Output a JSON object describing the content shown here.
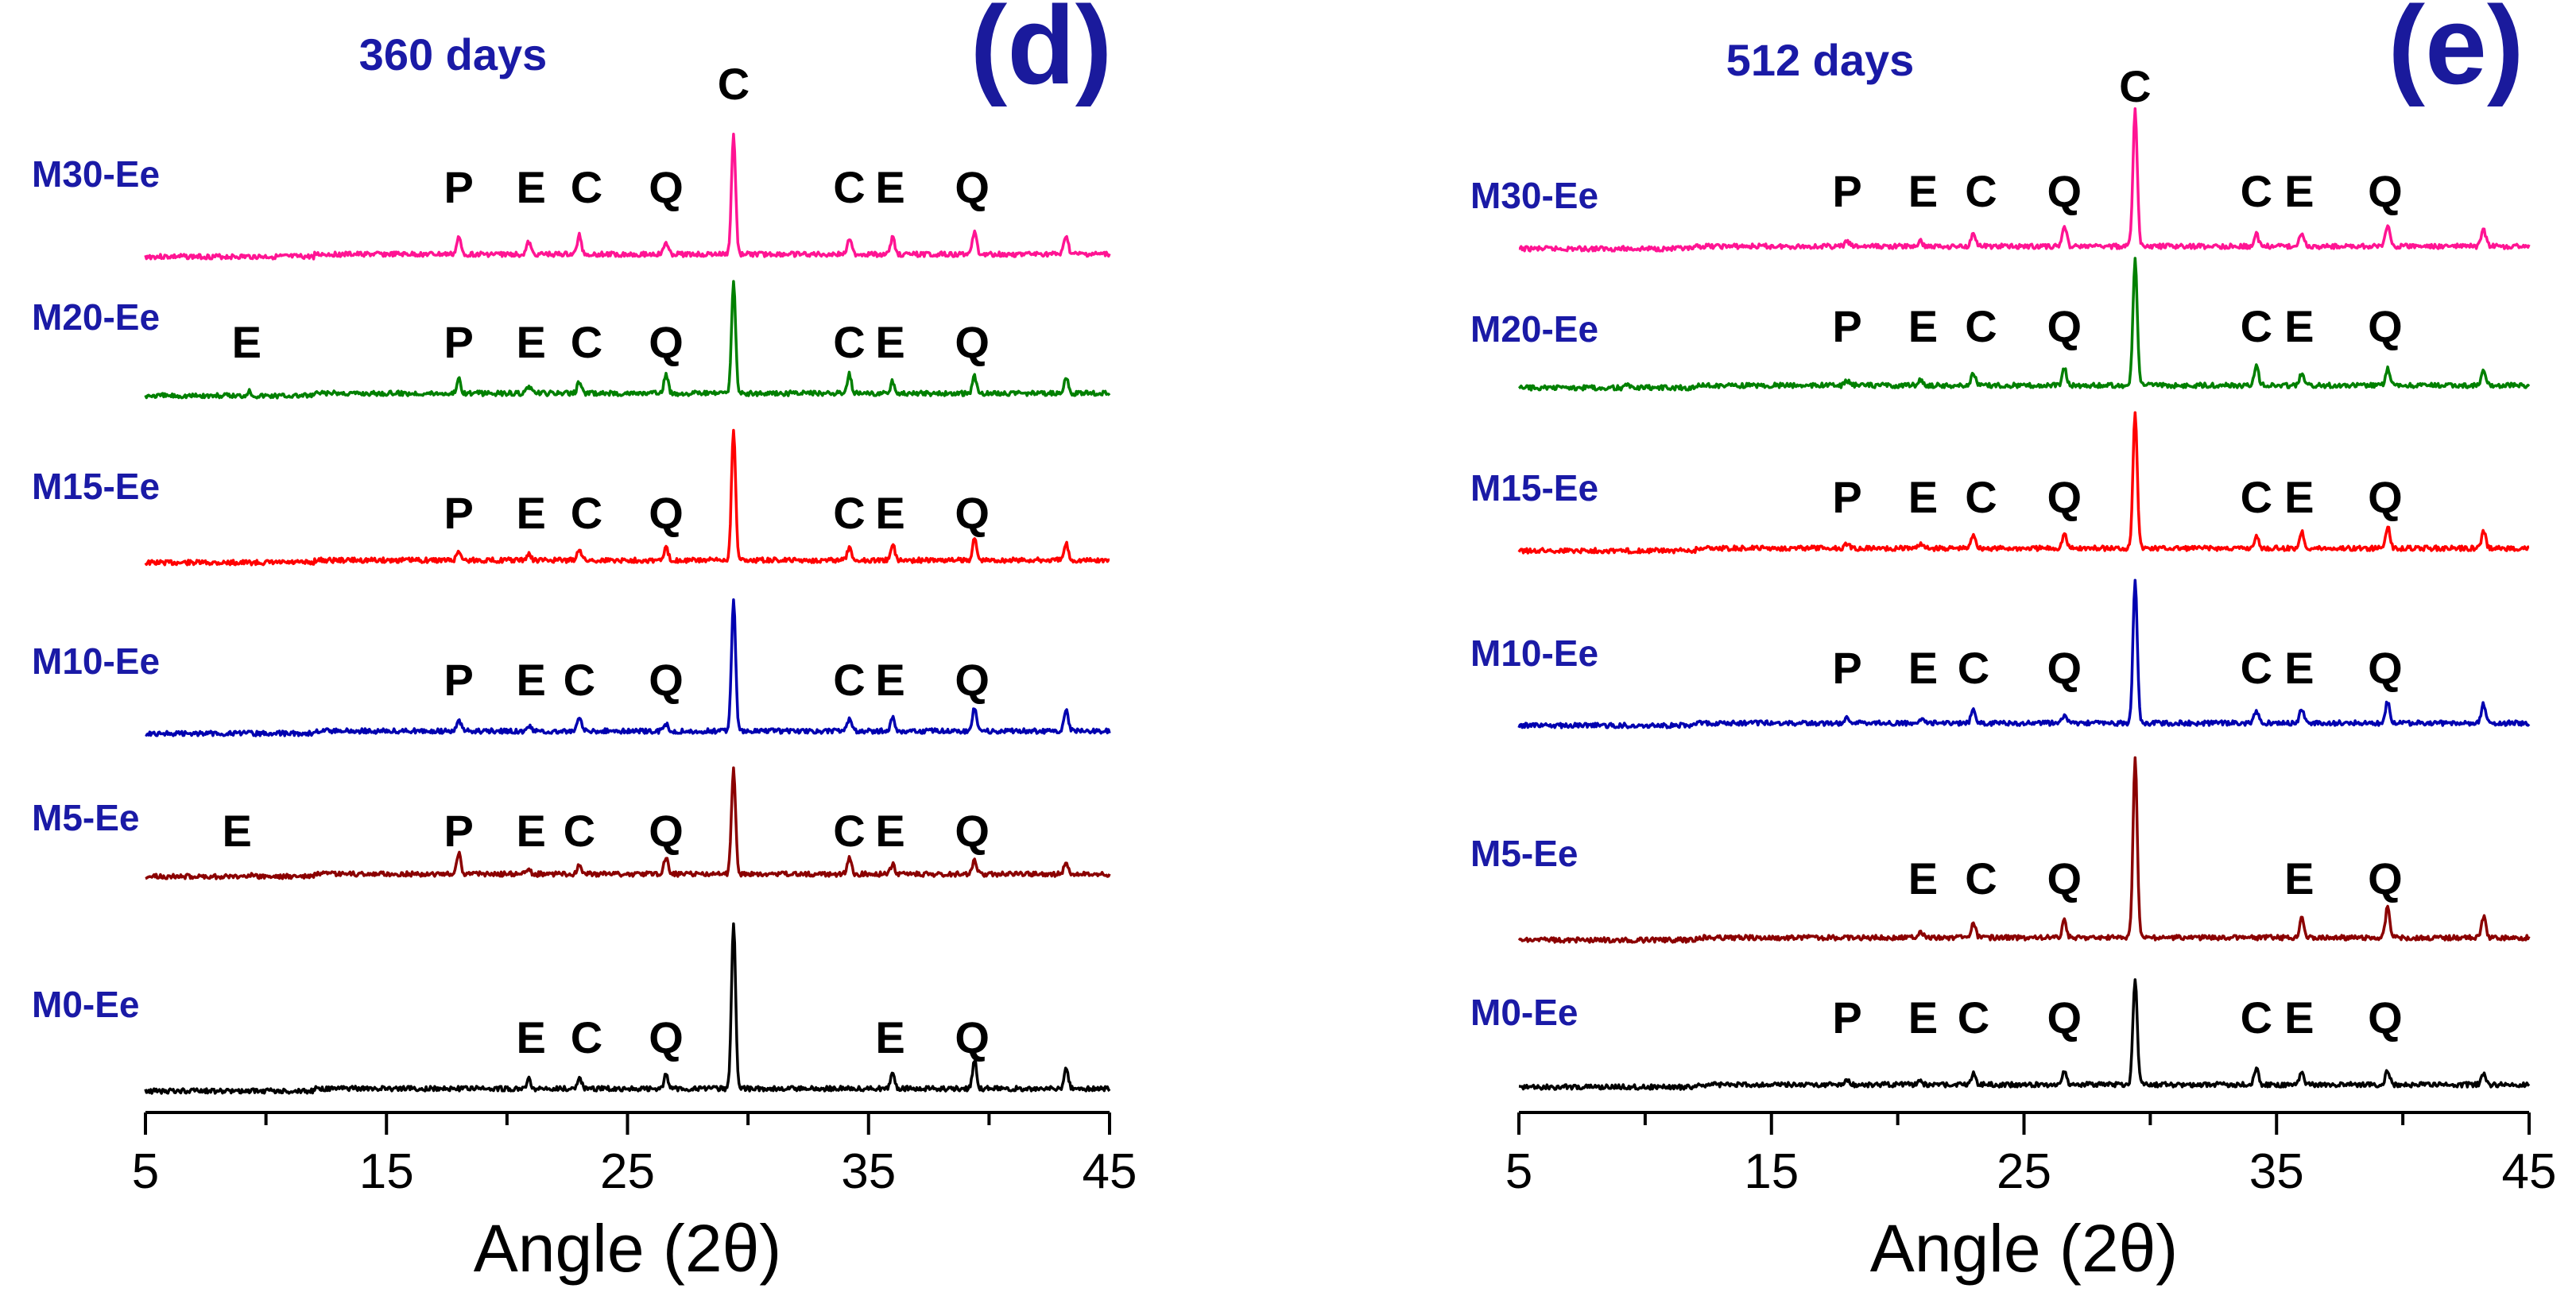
{
  "figure_title": "",
  "colors": {
    "M30-Ee": "#ff1493",
    "M20-Ee": "#008000",
    "M15-Ee": "#ff0000",
    "M10-Ee": "#0000b0",
    "M5-Ee": "#8b0000",
    "M0-Ee": "#000000",
    "label_blue": "#1a1aa6",
    "panel_letter": "#1a1a9c"
  },
  "chart_data": [
    {
      "type": "line",
      "panel_label": "(d)",
      "title": "360 days",
      "xlabel": "Angle (2θ)",
      "ylabel": "",
      "xlim": [
        5,
        45
      ],
      "xticks": [
        5,
        15,
        25,
        35,
        45
      ],
      "tick_labels": [
        "5",
        "15",
        "25",
        "35",
        "45"
      ],
      "grid": false,
      "peak_positions_2theta": [
        29.4,
        23.0,
        26.6,
        18.0,
        20.9,
        34.2,
        36.0,
        39.4,
        43.2,
        9.3
      ],
      "series": [
        {
          "name": "M30-Ee",
          "intensities": [
            1.0,
            0.16,
            0.1,
            0.14,
            0.1,
            0.14,
            0.14,
            0.2,
            0.16,
            0.0
          ],
          "annotations": [
            {
              "text": "P",
              "x": 18.0
            },
            {
              "text": "E",
              "x": 21.0
            },
            {
              "text": "C",
              "x": 23.3
            },
            {
              "text": "Q",
              "x": 26.6
            },
            {
              "text": "C",
              "x": 29.4
            },
            {
              "text": "C",
              "x": 34.2
            },
            {
              "text": "E",
              "x": 35.9
            },
            {
              "text": "Q",
              "x": 39.3
            }
          ]
        },
        {
          "name": "M20-Ee",
          "intensities": [
            0.92,
            0.1,
            0.16,
            0.12,
            0.06,
            0.16,
            0.1,
            0.14,
            0.14,
            0.04
          ],
          "annotations": [
            {
              "text": "E",
              "x": 9.2
            },
            {
              "text": "P",
              "x": 18.0
            },
            {
              "text": "E",
              "x": 21.0
            },
            {
              "text": "C",
              "x": 23.3
            },
            {
              "text": "Q",
              "x": 26.6
            },
            {
              "text": "C",
              "x": 34.2
            },
            {
              "text": "E",
              "x": 35.9
            },
            {
              "text": "Q",
              "x": 39.3
            }
          ]
        },
        {
          "name": "M15-Ee",
          "intensities": [
            1.1,
            0.1,
            0.1,
            0.08,
            0.05,
            0.1,
            0.14,
            0.18,
            0.14,
            0.0
          ],
          "annotations": [
            {
              "text": "P",
              "x": 18.0
            },
            {
              "text": "E",
              "x": 21.0
            },
            {
              "text": "C",
              "x": 23.3
            },
            {
              "text": "Q",
              "x": 26.6
            },
            {
              "text": "C",
              "x": 34.2
            },
            {
              "text": "E",
              "x": 35.9
            },
            {
              "text": "Q",
              "x": 39.3
            }
          ]
        },
        {
          "name": "M10-Ee",
          "intensities": [
            1.1,
            0.12,
            0.06,
            0.1,
            0.04,
            0.1,
            0.12,
            0.2,
            0.18,
            0.0
          ],
          "annotations": [
            {
              "text": "P",
              "x": 18.0
            },
            {
              "text": "E",
              "x": 21.0
            },
            {
              "text": "C",
              "x": 23.0
            },
            {
              "text": "Q",
              "x": 26.6
            },
            {
              "text": "C",
              "x": 34.2
            },
            {
              "text": "E",
              "x": 35.9
            },
            {
              "text": "Q",
              "x": 39.3
            }
          ]
        },
        {
          "name": "M5-Ee",
          "intensities": [
            0.88,
            0.08,
            0.14,
            0.18,
            0.04,
            0.14,
            0.08,
            0.12,
            0.1,
            0.02
          ],
          "annotations": [
            {
              "text": "E",
              "x": 8.8
            },
            {
              "text": "P",
              "x": 18.0
            },
            {
              "text": "E",
              "x": 21.0
            },
            {
              "text": "C",
              "x": 23.0
            },
            {
              "text": "Q",
              "x": 26.6
            },
            {
              "text": "C",
              "x": 34.2
            },
            {
              "text": "E",
              "x": 35.9
            },
            {
              "text": "Q",
              "x": 39.3
            }
          ]
        },
        {
          "name": "M0-Ee",
          "intensities": [
            1.4,
            0.1,
            0.12,
            0.0,
            0.08,
            0.0,
            0.14,
            0.24,
            0.18,
            0.0
          ],
          "annotations": [
            {
              "text": "E",
              "x": 21.0
            },
            {
              "text": "C",
              "x": 23.3
            },
            {
              "text": "Q",
              "x": 26.6
            },
            {
              "text": "E",
              "x": 35.9
            },
            {
              "text": "Q",
              "x": 39.3
            }
          ]
        }
      ]
    },
    {
      "type": "line",
      "panel_label": "(e)",
      "title": "512 days",
      "xlabel": "Angle (2θ)",
      "ylabel": "",
      "xlim": [
        5,
        45
      ],
      "xticks": [
        5,
        15,
        25,
        35,
        45
      ],
      "tick_labels": [
        "5",
        "15",
        "25",
        "35",
        "45"
      ],
      "grid": false,
      "peak_positions_2theta": [
        29.4,
        23.0,
        26.6,
        18.0,
        20.9,
        34.2,
        36.0,
        39.4,
        43.2,
        9.3
      ],
      "series": [
        {
          "name": "M30-Ee",
          "intensities": [
            1.15,
            0.12,
            0.18,
            0.04,
            0.04,
            0.1,
            0.12,
            0.18,
            0.14,
            0.0
          ],
          "annotations": [
            {
              "text": "P",
              "x": 18.0
            },
            {
              "text": "E",
              "x": 21.0
            },
            {
              "text": "C",
              "x": 23.3
            },
            {
              "text": "Q",
              "x": 26.6
            },
            {
              "text": "C",
              "x": 29.4
            },
            {
              "text": "C",
              "x": 34.2
            },
            {
              "text": "E",
              "x": 35.9
            },
            {
              "text": "Q",
              "x": 39.3
            }
          ]
        },
        {
          "name": "M20-Ee",
          "intensities": [
            1.05,
            0.1,
            0.14,
            0.04,
            0.04,
            0.16,
            0.1,
            0.14,
            0.12,
            0.02
          ],
          "annotations": [
            {
              "text": "P",
              "x": 18.0
            },
            {
              "text": "E",
              "x": 21.0
            },
            {
              "text": "C",
              "x": 23.3
            },
            {
              "text": "Q",
              "x": 26.6
            },
            {
              "text": "C",
              "x": 34.2
            },
            {
              "text": "E",
              "x": 35.9
            },
            {
              "text": "Q",
              "x": 39.3
            }
          ]
        },
        {
          "name": "M15-Ee",
          "intensities": [
            1.15,
            0.12,
            0.12,
            0.04,
            0.04,
            0.1,
            0.14,
            0.18,
            0.14,
            0.0
          ],
          "annotations": [
            {
              "text": "P",
              "x": 18.0
            },
            {
              "text": "E",
              "x": 21.0
            },
            {
              "text": "C",
              "x": 23.3
            },
            {
              "text": "Q",
              "x": 26.6
            },
            {
              "text": "C",
              "x": 34.2
            },
            {
              "text": "E",
              "x": 35.9
            },
            {
              "text": "Q",
              "x": 39.3
            }
          ]
        },
        {
          "name": "M10-Ee",
          "intensities": [
            1.2,
            0.12,
            0.06,
            0.04,
            0.04,
            0.1,
            0.12,
            0.18,
            0.16,
            0.0
          ],
          "annotations": [
            {
              "text": "P",
              "x": 18.0
            },
            {
              "text": "E",
              "x": 21.0
            },
            {
              "text": "C",
              "x": 23.0
            },
            {
              "text": "Q",
              "x": 26.6
            },
            {
              "text": "C",
              "x": 34.2
            },
            {
              "text": "E",
              "x": 35.9
            },
            {
              "text": "Q",
              "x": 39.3
            }
          ]
        },
        {
          "name": "M5-Ee",
          "intensities": [
            1.5,
            0.12,
            0.14,
            0.0,
            0.06,
            0.0,
            0.18,
            0.26,
            0.18,
            0.0
          ],
          "annotations": [
            {
              "text": "E",
              "x": 21.0
            },
            {
              "text": "C",
              "x": 23.3
            },
            {
              "text": "Q",
              "x": 26.6
            },
            {
              "text": "E",
              "x": 35.9
            },
            {
              "text": "Q",
              "x": 39.3
            }
          ]
        },
        {
          "name": "M0-Ee",
          "intensities": [
            0.9,
            0.1,
            0.12,
            0.04,
            0.03,
            0.14,
            0.1,
            0.12,
            0.1,
            0.0
          ],
          "annotations": [
            {
              "text": "P",
              "x": 18.0
            },
            {
              "text": "E",
              "x": 21.0
            },
            {
              "text": "C",
              "x": 23.0
            },
            {
              "text": "Q",
              "x": 26.6
            },
            {
              "text": "C",
              "x": 34.2
            },
            {
              "text": "E",
              "x": 35.9
            },
            {
              "text": "Q",
              "x": 39.3
            }
          ]
        }
      ]
    }
  ]
}
